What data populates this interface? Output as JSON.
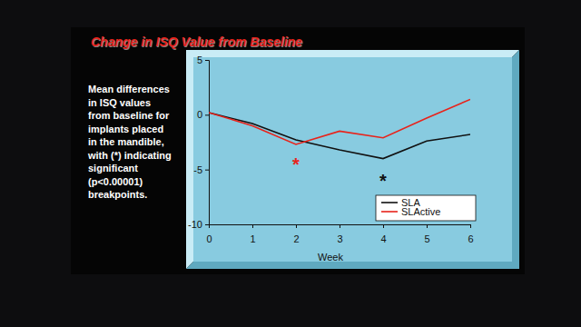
{
  "chart_data": {
    "type": "line",
    "title": "Change in ISQ Value from Baseline",
    "subtitle": [
      "Mean differences",
      "in ISQ values",
      "from baseline for",
      "implants placed",
      "in the mandible,",
      "with (*) indicating",
      "significant",
      "(p<0.00001)",
      "breakpoints."
    ],
    "x_label": "Week",
    "x": [
      0,
      1,
      2,
      3,
      4,
      5,
      6
    ],
    "xlim": [
      0,
      6
    ],
    "xticks": [
      0,
      1,
      2,
      3,
      4,
      5,
      6
    ],
    "ylim": [
      -10,
      5
    ],
    "yticks": [
      -10,
      -5,
      0,
      5
    ],
    "series": [
      {
        "name": "SLA",
        "color": "#111111",
        "values": [
          0.2,
          -0.8,
          -2.3,
          -3.2,
          -4.0,
          -2.4,
          -1.8
        ]
      },
      {
        "name": "SLActive",
        "color": "#e8231b",
        "values": [
          0.2,
          -1.0,
          -2.7,
          -1.5,
          -2.1,
          -0.3,
          1.4
        ]
      }
    ],
    "annotations": [
      {
        "text": "*",
        "x": 2,
        "y": -4.3,
        "color": "#e8231b"
      },
      {
        "text": "*",
        "x": 4,
        "y": -5.8,
        "color": "#111111"
      }
    ],
    "legend": "lower right",
    "grid": false
  }
}
